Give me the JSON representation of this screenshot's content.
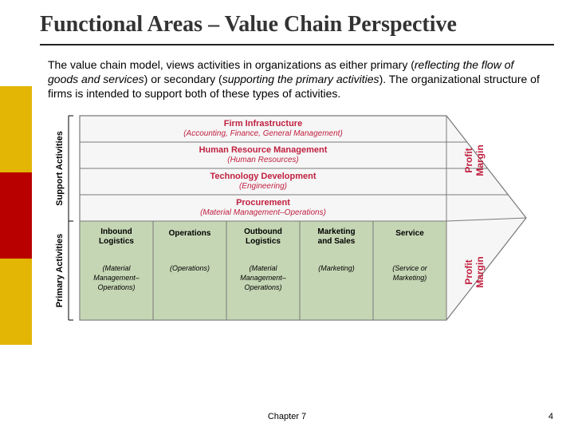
{
  "sidebar_colors": [
    "#ffffff",
    "#e3b505",
    "#b80000",
    "#e3b505",
    "#ffffff"
  ],
  "title": {
    "main": "Functional Areas",
    "sep": " – ",
    "sub": "Value Chain Perspective"
  },
  "paragraph": {
    "p1": "The ",
    "vc": "value chain",
    "p2": " model, views activities in organizations as either primary (",
    "i1": "reflecting the flow of goods and services",
    "p3": ") or secondary (",
    "i2": "supporting the primary activities",
    "p4": "). The organizational structure of firms is intended to support both of these types of activities."
  },
  "diagram": {
    "support_label": "Support Activities",
    "primary_label": "Primary Activities",
    "profit_margin": "Profit Margin",
    "support_layers": [
      {
        "title": "Firm Infrastructure",
        "sub": "(Accounting, Finance, General Management)"
      },
      {
        "title": "Human Resource Management",
        "sub": "(Human Resources)"
      },
      {
        "title": "Technology Development",
        "sub": "(Engineering)"
      },
      {
        "title": "Procurement",
        "sub": "(Material Management–Operations)"
      }
    ],
    "primary_boxes": [
      {
        "title": "Inbound Logistics",
        "sub": "(Material Management– Operations)"
      },
      {
        "title": "Operations",
        "sub": "(Operations)"
      },
      {
        "title": "Outbound Logistics",
        "sub": "(Material Management– Operations)"
      },
      {
        "title": "Marketing and Sales",
        "sub": "(Marketing)"
      },
      {
        "title": "Service",
        "sub": "(Service or Marketing)"
      }
    ],
    "colors": {
      "support_fill": "#ffffff",
      "primary_fill": "#c5d6b4",
      "border": "#7a7a7a",
      "arrow_fill": "#f6f6f6"
    }
  },
  "footer": {
    "chapter": "Chapter 7",
    "page": "4"
  }
}
